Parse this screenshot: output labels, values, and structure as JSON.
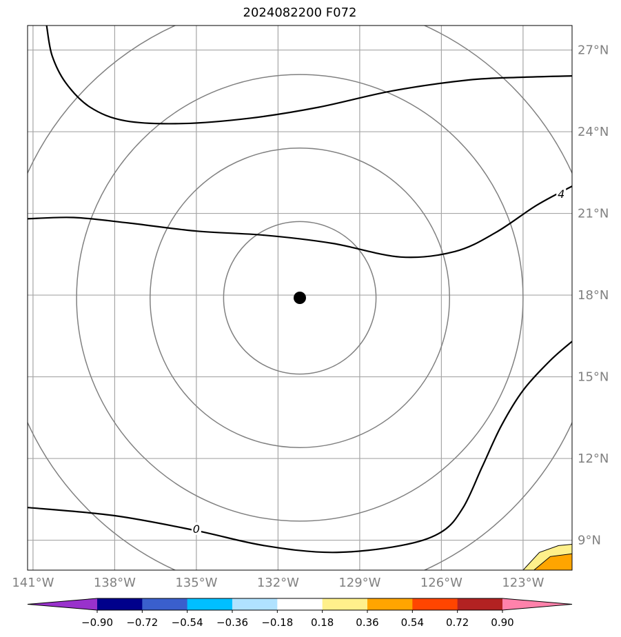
{
  "title": "2024082200 F072",
  "map": {
    "lon_range": [
      -141.2,
      -121.2
    ],
    "lat_range": [
      7.9,
      27.9
    ],
    "lon_ticks": [
      {
        "value": -141,
        "label": "141°W"
      },
      {
        "value": -138,
        "label": "138°W"
      },
      {
        "value": -135,
        "label": "135°W"
      },
      {
        "value": -132,
        "label": "132°W"
      },
      {
        "value": -129,
        "label": "129°W"
      },
      {
        "value": -126,
        "label": "126°W"
      },
      {
        "value": -123,
        "label": "123°W"
      }
    ],
    "lat_ticks": [
      {
        "value": 9,
        "label": "9°N"
      },
      {
        "value": 12,
        "label": "12°N"
      },
      {
        "value": 15,
        "label": "15°N"
      },
      {
        "value": 18,
        "label": "18°N"
      },
      {
        "value": 21,
        "label": "21°N"
      },
      {
        "value": 24,
        "label": "24°N"
      },
      {
        "value": 27,
        "label": "27°N"
      }
    ],
    "gridlines": true,
    "storm_center": {
      "lon": -131.2,
      "lat": 17.9
    },
    "range_ring_radii_deg": [
      2.8,
      5.5,
      8.2,
      11.0
    ],
    "contours": [
      {
        "label": "",
        "points": [
          [
            -140.5,
            27.9
          ],
          [
            -140.3,
            26.8
          ],
          [
            -139.8,
            25.8
          ],
          [
            -138.9,
            24.9
          ],
          [
            -137.6,
            24.4
          ],
          [
            -135.5,
            24.3
          ],
          [
            -133.0,
            24.5
          ],
          [
            -130.5,
            24.9
          ],
          [
            -127.8,
            25.5
          ],
          [
            -125.0,
            25.9
          ],
          [
            -123.0,
            26.0
          ],
          [
            -121.2,
            26.05
          ]
        ]
      },
      {
        "label": "4",
        "label_at": [
          -121.6,
          21.7
        ],
        "points": [
          [
            -141.2,
            20.8
          ],
          [
            -139.5,
            20.85
          ],
          [
            -137.5,
            20.65
          ],
          [
            -135.0,
            20.35
          ],
          [
            -132.5,
            20.2
          ],
          [
            -130.0,
            19.9
          ],
          [
            -127.5,
            19.4
          ],
          [
            -125.5,
            19.6
          ],
          [
            -124.0,
            20.3
          ],
          [
            -122.5,
            21.3
          ],
          [
            -121.2,
            22.0
          ]
        ]
      },
      {
        "label": "0",
        "label_at": [
          -135.0,
          9.4
        ],
        "points": [
          [
            -141.2,
            10.2
          ],
          [
            -138.0,
            9.9
          ],
          [
            -135.0,
            9.35
          ],
          [
            -132.5,
            8.8
          ],
          [
            -130.0,
            8.55
          ],
          [
            -127.5,
            8.8
          ],
          [
            -126.0,
            9.3
          ],
          [
            -125.2,
            10.2
          ],
          [
            -124.5,
            11.7
          ],
          [
            -123.8,
            13.2
          ],
          [
            -123.0,
            14.5
          ],
          [
            -122.0,
            15.6
          ],
          [
            -121.2,
            16.3
          ]
        ]
      }
    ],
    "filled_regions": [
      {
        "level_color": "#fff08b",
        "points": [
          [
            -123.0,
            7.9
          ],
          [
            -122.4,
            8.55
          ],
          [
            -121.7,
            8.8
          ],
          [
            -121.2,
            8.85
          ],
          [
            -121.2,
            7.9
          ]
        ]
      },
      {
        "level_color": "#ffa500",
        "points": [
          [
            -122.6,
            7.9
          ],
          [
            -122.0,
            8.4
          ],
          [
            -121.2,
            8.5
          ],
          [
            -121.2,
            7.9
          ]
        ]
      }
    ]
  },
  "colorbar": {
    "colors": [
      "#9932cc",
      "#00008b",
      "#3a5fcd",
      "#00bfff",
      "#b0e2ff",
      "#ffffff",
      "#fff08b",
      "#ffa500",
      "#ff4500",
      "#b22222",
      "#ff82ab"
    ],
    "tick_labels": [
      "−0.90",
      "−0.72",
      "−0.54",
      "−0.36",
      "−0.18",
      "0.18",
      "0.36",
      "0.54",
      "0.72",
      "0.90"
    ],
    "extend": "both"
  }
}
